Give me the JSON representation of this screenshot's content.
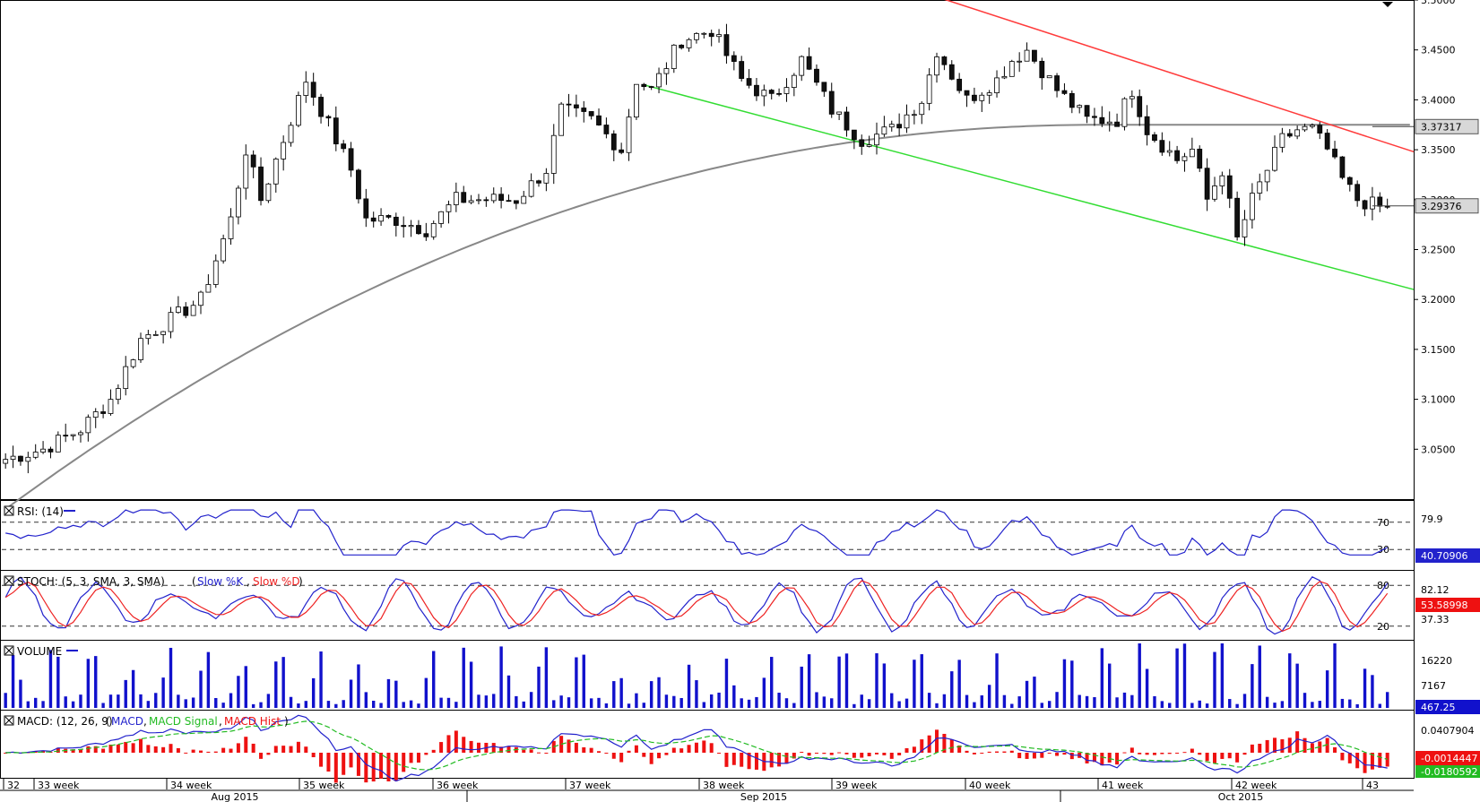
{
  "chart_data": [
    {
      "type": "candlestick",
      "panel": "price",
      "y_axis_ticks": [
        "3.5000",
        "3.4500",
        "3.4000",
        "3.3500",
        "3.3000",
        "3.2500",
        "3.2000",
        "3.1500",
        "3.1000",
        "3.0500"
      ],
      "ylim": [
        3.0,
        3.5
      ],
      "overlays": [
        {
          "name": "moving average",
          "color": "#888888"
        },
        {
          "name": "upper channel line",
          "color": "#ff3b3b",
          "from": 3.53,
          "to": 3.348
        },
        {
          "name": "lower channel line",
          "color": "#33dd33",
          "from": 3.415,
          "to": 3.21
        }
      ],
      "price_labels": [
        {
          "text": "3.37317",
          "value": 3.37317
        },
        {
          "text": "3.29376",
          "value": 3.29376
        }
      ],
      "ohlc_waypoints": [
        [
          0,
          3.04
        ],
        [
          5,
          3.05
        ],
        [
          10,
          3.07
        ],
        [
          14,
          3.1
        ],
        [
          18,
          3.16
        ],
        [
          22,
          3.18
        ],
        [
          26,
          3.2
        ],
        [
          30,
          3.28
        ],
        [
          32,
          3.35
        ],
        [
          34,
          3.3
        ],
        [
          38,
          3.38
        ],
        [
          40,
          3.42
        ],
        [
          42,
          3.39
        ],
        [
          44,
          3.36
        ],
        [
          46,
          3.33
        ],
        [
          48,
          3.28
        ],
        [
          52,
          3.28
        ],
        [
          56,
          3.27
        ],
        [
          60,
          3.3
        ],
        [
          64,
          3.3
        ],
        [
          68,
          3.3
        ],
        [
          72,
          3.33
        ],
        [
          74,
          3.39
        ],
        [
          78,
          3.38
        ],
        [
          82,
          3.35
        ],
        [
          84,
          3.42
        ],
        [
          86,
          3.41
        ],
        [
          90,
          3.46
        ],
        [
          94,
          3.47
        ],
        [
          98,
          3.42
        ],
        [
          102,
          3.4
        ],
        [
          106,
          3.44
        ],
        [
          110,
          3.39
        ],
        [
          114,
          3.36
        ],
        [
          118,
          3.37
        ],
        [
          122,
          3.4
        ],
        [
          124,
          3.45
        ],
        [
          128,
          3.4
        ],
        [
          132,
          3.42
        ],
        [
          134,
          3.44
        ],
        [
          136,
          3.45
        ],
        [
          140,
          3.41
        ],
        [
          144,
          3.38
        ],
        [
          148,
          3.38
        ],
        [
          150,
          3.41
        ],
        [
          152,
          3.37
        ],
        [
          156,
          3.34
        ],
        [
          158,
          3.35
        ],
        [
          160,
          3.3
        ],
        [
          162,
          3.33
        ],
        [
          164,
          3.26
        ],
        [
          166,
          3.3
        ],
        [
          168,
          3.33
        ],
        [
          170,
          3.36
        ],
        [
          172,
          3.37
        ],
        [
          174,
          3.37
        ],
        [
          176,
          3.35
        ],
        [
          178,
          3.32
        ],
        [
          180,
          3.3
        ],
        [
          184,
          3.29
        ]
      ]
    },
    {
      "type": "line",
      "panel": "rsi",
      "label": "RSI: (14)",
      "series": [
        {
          "name": "RSI",
          "color": "#2222cc"
        }
      ],
      "levels": [
        {
          "value": 70,
          "label": "70"
        },
        {
          "value": 30,
          "label": "30"
        }
      ],
      "y_labels": [
        "79.9",
        "40.70906"
      ]
    },
    {
      "type": "line",
      "panel": "stoch",
      "label": "STOCH: (5, 3, SMA, 3, SMA)",
      "series": [
        {
          "name": "Slow %K",
          "color": "#2222cc"
        },
        {
          "name": "Slow %D",
          "color": "#ee2222"
        }
      ],
      "levels": [
        {
          "value": 80,
          "label": "80"
        },
        {
          "value": 20,
          "label": "20"
        }
      ],
      "y_labels": [
        "82.12",
        "53.58998",
        "37.33"
      ]
    },
    {
      "type": "bar",
      "panel": "volume",
      "label": "VOLUME",
      "series": [
        {
          "name": "Volume",
          "color": "#1111cc"
        }
      ],
      "y_labels": [
        "16220",
        "7167",
        "467.25"
      ]
    },
    {
      "type": "line",
      "panel": "macd",
      "label": "MACD: (12, 26, 9)",
      "series": [
        {
          "name": "MACD",
          "color": "#2222cc"
        },
        {
          "name": "MACD Signal",
          "color": "#22bb22"
        },
        {
          "name": "MACD Hist",
          "color": "#ee1111"
        }
      ],
      "y_labels": [
        "0.0407904",
        "-0.0014447",
        "-0.0180592"
      ]
    }
  ],
  "x_axis": {
    "week_labels": [
      "32",
      "33 week",
      "34 week",
      "35 week",
      "36 week",
      "37 week",
      "38 week",
      "39 week",
      "40 week",
      "41 week",
      "42 week",
      "43"
    ],
    "month_labels": [
      "Aug 2015",
      "Sep 2015",
      "Oct 2015"
    ]
  }
}
